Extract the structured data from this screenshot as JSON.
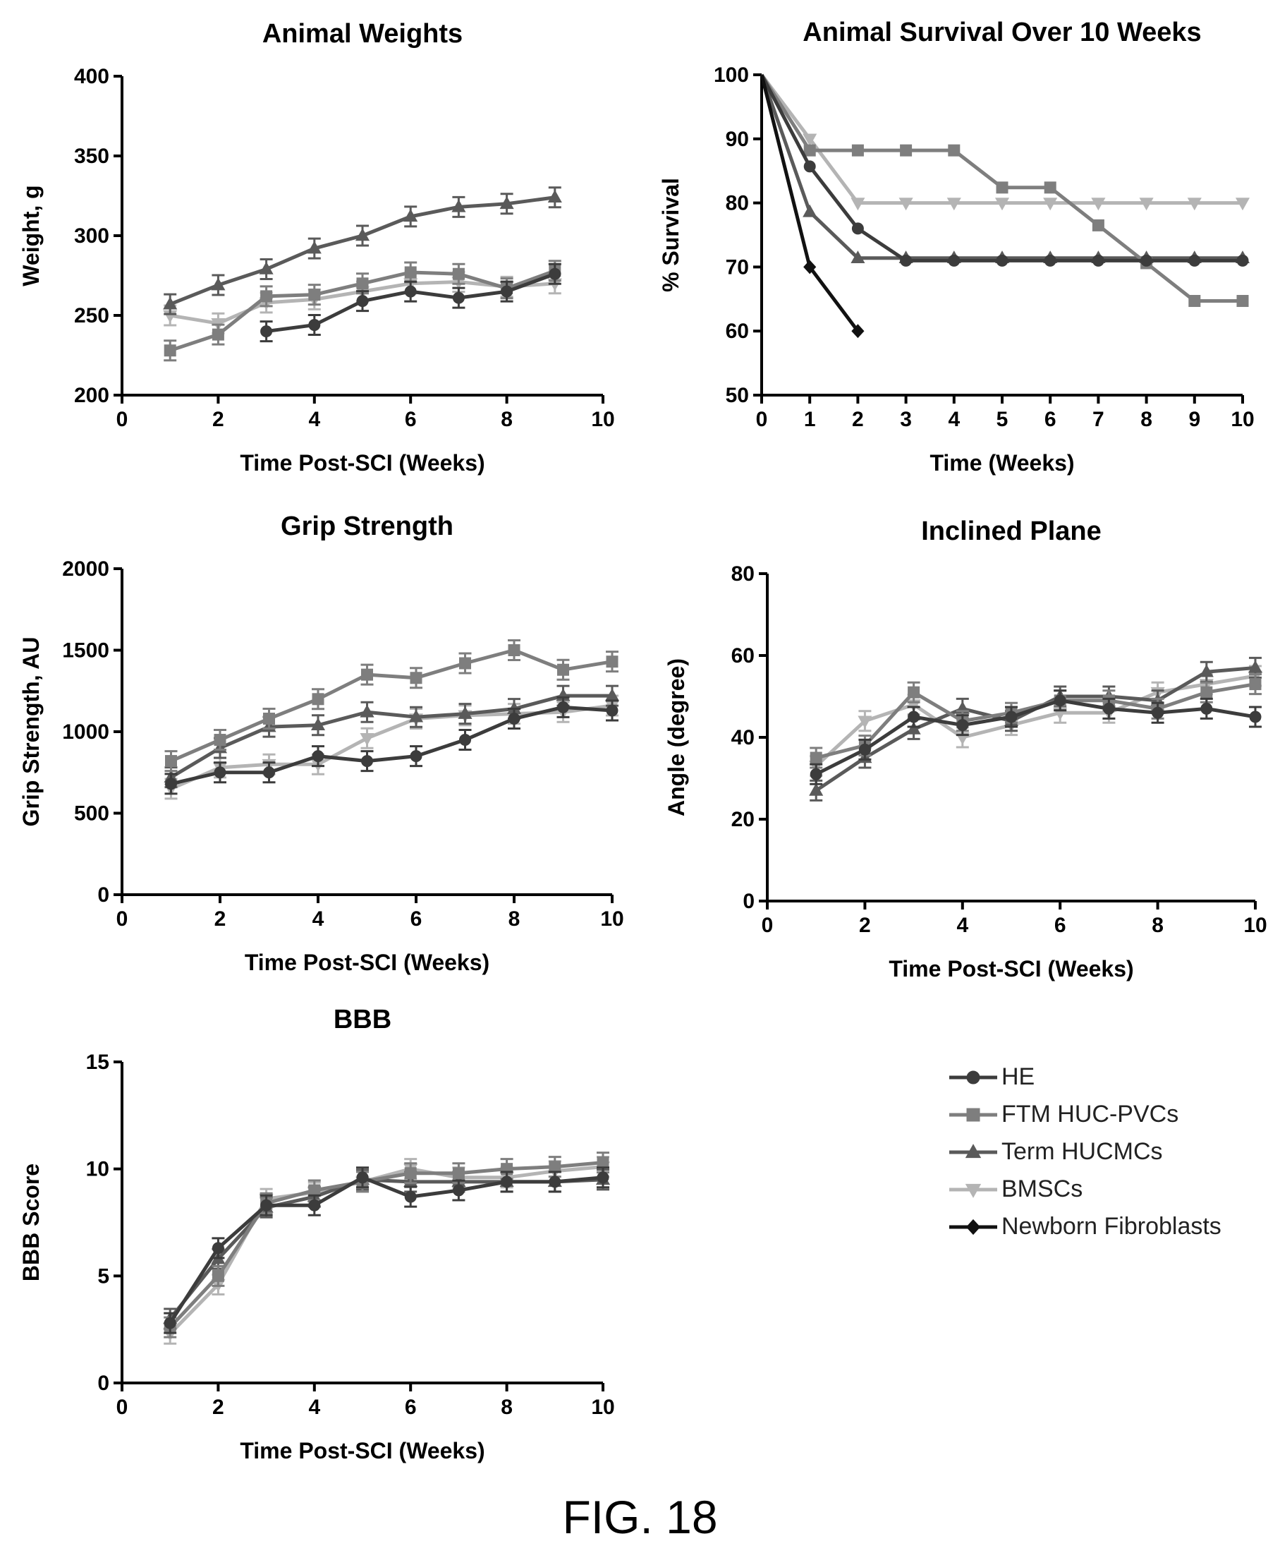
{
  "figure_label": "FIG. 18",
  "legend": [
    {
      "name": "HE",
      "color": "#3c3c3c",
      "marker": "circle"
    },
    {
      "name": "FTM HUC-PVCs",
      "color": "#7e7e7e",
      "marker": "square"
    },
    {
      "name": "Term HUCMCs",
      "color": "#5a5a5a",
      "marker": "triangle"
    },
    {
      "name": "BMSCs",
      "color": "#b4b4b4",
      "marker": "triangle-down"
    },
    {
      "name": "Newborn Fibroblasts",
      "color": "#111111",
      "marker": "diamond"
    }
  ],
  "chart_data": [
    {
      "type": "line",
      "title": "Animal Weights",
      "xlabel": "Time Post-SCI (Weeks)",
      "ylabel": "Weight, g",
      "xlim": [
        0,
        10
      ],
      "ylim": [
        200,
        400
      ],
      "xticks": [
        "0",
        "2",
        "4",
        "6",
        "8",
        "10"
      ],
      "yticks": [
        "200",
        "250",
        "300",
        "350",
        "400"
      ],
      "error_bars": true,
      "series": [
        {
          "name": "HE",
          "x": [
            3,
            4,
            5,
            6,
            7,
            8,
            9
          ],
          "y": [
            240,
            244,
            259,
            265,
            261,
            265,
            276
          ]
        },
        {
          "name": "FTM HUC-PVCs",
          "x": [
            1,
            2,
            3,
            4,
            5,
            6,
            7,
            8,
            9
          ],
          "y": [
            228,
            238,
            262,
            263,
            270,
            277,
            276,
            267,
            278
          ]
        },
        {
          "name": "Term HUCMCs",
          "x": [
            1,
            2,
            3,
            4,
            5,
            6,
            7,
            8,
            9
          ],
          "y": [
            257,
            269,
            279,
            292,
            300,
            312,
            318,
            320,
            324
          ]
        },
        {
          "name": "BMSCs",
          "x": [
            1,
            2,
            3,
            4,
            5,
            6,
            7,
            8,
            9
          ],
          "y": [
            250,
            245,
            258,
            260,
            265,
            270,
            271,
            268,
            270
          ]
        }
      ]
    },
    {
      "type": "line",
      "title": "Animal Survival Over 10 Weeks",
      "xlabel": "Time (Weeks)",
      "ylabel": "% Survival",
      "xlim": [
        0,
        10
      ],
      "ylim": [
        50,
        100
      ],
      "xticks": [
        "0",
        "1",
        "2",
        "3",
        "4",
        "5",
        "6",
        "7",
        "8",
        "9",
        "10"
      ],
      "yticks": [
        "50",
        "60",
        "70",
        "80",
        "90",
        "100"
      ],
      "error_bars": false,
      "series": [
        {
          "name": "HE",
          "x": [
            0,
            1,
            2,
            3,
            4,
            5,
            6,
            7,
            8,
            9,
            10
          ],
          "y": [
            100,
            85.7,
            76,
            71,
            71,
            71,
            71,
            71,
            71,
            71,
            71
          ]
        },
        {
          "name": "FTM HUC-PVCs",
          "x": [
            0,
            1,
            2,
            3,
            4,
            5,
            6,
            7,
            8,
            9,
            10
          ],
          "y": [
            100,
            88.2,
            88.2,
            88.2,
            88.2,
            82.4,
            82.4,
            76.5,
            70.6,
            64.7,
            64.7
          ]
        },
        {
          "name": "Term HUCMCs",
          "x": [
            0,
            1,
            2,
            3,
            4,
            5,
            6,
            7,
            8,
            9,
            10
          ],
          "y": [
            100,
            78.6,
            71.4,
            71.4,
            71.4,
            71.4,
            71.4,
            71.4,
            71.4,
            71.4,
            71.4
          ]
        },
        {
          "name": "BMSCs",
          "x": [
            0,
            1,
            2,
            3,
            4,
            5,
            6,
            7,
            8,
            9,
            10
          ],
          "y": [
            100,
            90,
            80,
            80,
            80,
            80,
            80,
            80,
            80,
            80,
            80
          ]
        },
        {
          "name": "Newborn Fibroblasts",
          "x": [
            0,
            1,
            2
          ],
          "y": [
            100,
            70,
            60
          ]
        }
      ]
    },
    {
      "type": "line",
      "title": "Grip Strength",
      "xlabel": "Time Post-SCI (Weeks)",
      "ylabel": "Grip Strength, AU",
      "xlim": [
        0,
        10
      ],
      "ylim": [
        0,
        2000
      ],
      "xticks": [
        "0",
        "2",
        "4",
        "6",
        "8",
        "10"
      ],
      "yticks": [
        "0",
        "500",
        "1000",
        "1500",
        "2000"
      ],
      "error_bars": true,
      "series": [
        {
          "name": "HE",
          "x": [
            1,
            2,
            3,
            4,
            5,
            6,
            7,
            8,
            9,
            10
          ],
          "y": [
            680,
            750,
            750,
            850,
            820,
            850,
            950,
            1080,
            1150,
            1130
          ]
        },
        {
          "name": "FTM HUC-PVCs",
          "x": [
            1,
            2,
            3,
            4,
            5,
            6,
            7,
            8,
            9,
            10
          ],
          "y": [
            820,
            950,
            1080,
            1200,
            1350,
            1330,
            1420,
            1500,
            1380,
            1430
          ]
        },
        {
          "name": "Term HUCMCs",
          "x": [
            1,
            2,
            3,
            4,
            5,
            6,
            7,
            8,
            9,
            10
          ],
          "y": [
            720,
            900,
            1030,
            1040,
            1120,
            1090,
            1110,
            1140,
            1220,
            1220
          ]
        },
        {
          "name": "BMSCs",
          "x": [
            1,
            2,
            3,
            4,
            5,
            6,
            7,
            8,
            9,
            10
          ],
          "y": [
            650,
            780,
            800,
            800,
            960,
            1080,
            1100,
            1110,
            1120,
            1160
          ]
        }
      ]
    },
    {
      "type": "line",
      "title": "Inclined Plane",
      "xlabel": "Time Post-SCI (Weeks)",
      "ylabel": "Angle (degree)",
      "xlim": [
        0,
        10
      ],
      "ylim": [
        0,
        80
      ],
      "xticks": [
        "0",
        "2",
        "4",
        "6",
        "8",
        "10"
      ],
      "yticks": [
        "0",
        "20",
        "40",
        "60",
        "80"
      ],
      "error_bars": true,
      "series": [
        {
          "name": "HE",
          "x": [
            1,
            2,
            3,
            4,
            5,
            6,
            7,
            8,
            9,
            10
          ],
          "y": [
            31,
            37,
            45,
            43,
            45,
            49,
            47,
            46,
            47,
            45
          ]
        },
        {
          "name": "FTM HUC-PVCs",
          "x": [
            1,
            2,
            3,
            4,
            5,
            6,
            7,
            8,
            9,
            10
          ],
          "y": [
            35,
            38,
            51,
            44,
            46,
            49,
            49,
            47,
            51,
            53
          ]
        },
        {
          "name": "Term HUCMCs",
          "x": [
            1,
            2,
            3,
            4,
            5,
            6,
            7,
            8,
            9,
            10
          ],
          "y": [
            27,
            35,
            42,
            47,
            44,
            50,
            50,
            49,
            56,
            57
          ]
        },
        {
          "name": "BMSCs",
          "x": [
            1,
            2,
            3,
            4,
            5,
            6,
            7,
            8,
            9,
            10
          ],
          "y": [
            33,
            44,
            48,
            40,
            43,
            46,
            46,
            51,
            53,
            55
          ]
        }
      ]
    },
    {
      "type": "line",
      "title": "BBB",
      "xlabel": "Time Post-SCI (Weeks)",
      "ylabel": "BBB Score",
      "xlim": [
        0,
        10
      ],
      "ylim": [
        0,
        15
      ],
      "xticks": [
        "0",
        "2",
        "4",
        "6",
        "8",
        "10"
      ],
      "yticks": [
        "0",
        "5",
        "10",
        "15"
      ],
      "error_bars": true,
      "series": [
        {
          "name": "HE",
          "x": [
            1,
            2,
            3,
            4,
            5,
            6,
            7,
            8,
            9,
            10
          ],
          "y": [
            2.8,
            6.3,
            8.3,
            8.3,
            9.6,
            8.7,
            9.0,
            9.4,
            9.4,
            9.6
          ]
        },
        {
          "name": "FTM HUC-PVCs",
          "x": [
            1,
            2,
            3,
            4,
            5,
            6,
            7,
            8,
            9,
            10
          ],
          "y": [
            2.6,
            5.0,
            8.4,
            9.0,
            9.4,
            9.8,
            9.8,
            10.0,
            10.1,
            10.3
          ]
        },
        {
          "name": "Term HUCMCs",
          "x": [
            1,
            2,
            3,
            4,
            5,
            6,
            7,
            8,
            9,
            10
          ],
          "y": [
            3.0,
            5.8,
            8.2,
            8.7,
            9.5,
            9.4,
            9.4,
            9.4,
            9.4,
            9.5
          ]
        },
        {
          "name": "BMSCs",
          "x": [
            1,
            2,
            3,
            4,
            5,
            6,
            7,
            8,
            9,
            10
          ],
          "y": [
            2.3,
            4.6,
            8.6,
            8.9,
            9.4,
            10.0,
            9.6,
            9.6,
            9.9,
            10.1
          ]
        }
      ]
    }
  ]
}
